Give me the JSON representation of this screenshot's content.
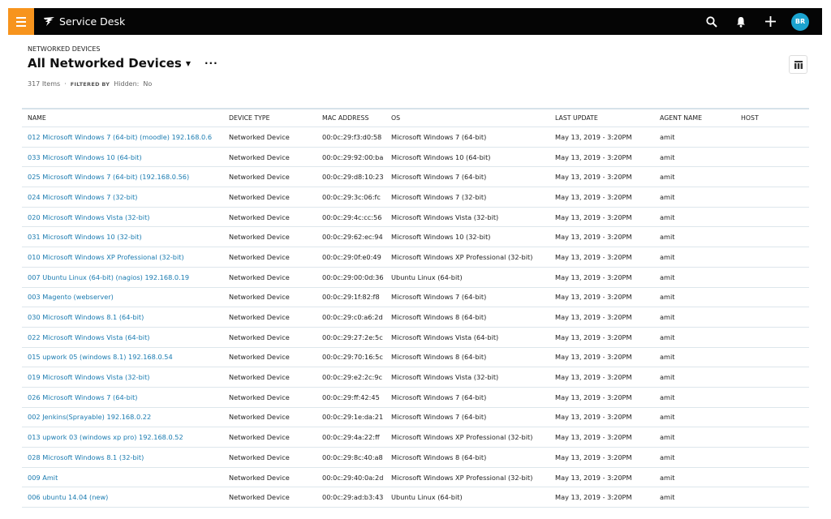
{
  "app": {
    "title": "Service Desk",
    "avatar_initials": "BR",
    "brand_color": "#f7941d",
    "avatar_color": "#1ba3cf",
    "link_color": "#1a7bb0"
  },
  "page": {
    "breadcrumb": "NETWORKED DEVICES",
    "title": "All Networked Devices",
    "item_count": "317 Items",
    "separator": "·",
    "filtered_by_label": "FILTERED BY",
    "filter_key": "Hidden:",
    "filter_value": "No"
  },
  "icons": {
    "menu": "hamburger-icon",
    "search": "search-icon",
    "bell": "bell-icon",
    "add": "plus-icon",
    "columns": "columns-icon"
  },
  "table": {
    "columns": [
      "NAME",
      "DEVICE TYPE",
      "MAC ADDRESS",
      "OS",
      "LAST UPDATE",
      "AGENT NAME",
      "HOST"
    ],
    "rows": [
      [
        "012 Microsoft Windows 7 (64-bit) (moodle) 192.168.0.6",
        "Networked Device",
        "00:0c:29:f3:d0:58",
        "Microsoft Windows 7 (64-bit)",
        "May 13, 2019 - 3:20PM",
        "amit",
        ""
      ],
      [
        "033 Microsoft Windows 10 (64-bit)",
        "Networked Device",
        "00:0c:29:92:00:ba",
        "Microsoft Windows 10 (64-bit)",
        "May 13, 2019 - 3:20PM",
        "amit",
        ""
      ],
      [
        "025 Microsoft Windows 7 (64-bit) (192.168.0.56)",
        "Networked Device",
        "00:0c:29:d8:10:23",
        "Microsoft Windows 7 (64-bit)",
        "May 13, 2019 - 3:20PM",
        "amit",
        ""
      ],
      [
        "024 Microsoft Windows 7 (32-bit)",
        "Networked Device",
        "00:0c:29:3c:06:fc",
        "Microsoft Windows 7 (32-bit)",
        "May 13, 2019 - 3:20PM",
        "amit",
        ""
      ],
      [
        "020 Microsoft Windows Vista (32-bit)",
        "Networked Device",
        "00:0c:29:4c:cc:56",
        "Microsoft Windows Vista (32-bit)",
        "May 13, 2019 - 3:20PM",
        "amit",
        ""
      ],
      [
        "031 Microsoft Windows 10 (32-bit)",
        "Networked Device",
        "00:0c:29:62:ec:94",
        "Microsoft Windows 10 (32-bit)",
        "May 13, 2019 - 3:20PM",
        "amit",
        ""
      ],
      [
        "010 Microsoft Windows XP Professional (32-bit)",
        "Networked Device",
        "00:0c:29:0f:e0:49",
        "Microsoft Windows XP Professional (32-bit)",
        "May 13, 2019 - 3:20PM",
        "amit",
        ""
      ],
      [
        "007 Ubuntu Linux (64-bit) (nagios) 192.168.0.19",
        "Networked Device",
        "00:0c:29:00:0d:36",
        "Ubuntu Linux (64-bit)",
        "May 13, 2019 - 3:20PM",
        "amit",
        ""
      ],
      [
        "003 Magento (webserver)",
        "Networked Device",
        "00:0c:29:1f:82:f8",
        "Microsoft Windows 7 (64-bit)",
        "May 13, 2019 - 3:20PM",
        "amit",
        ""
      ],
      [
        "030 Microsoft Windows 8.1 (64-bit)",
        "Networked Device",
        "00:0c:29:c0:a6:2d",
        "Microsoft Windows 8 (64-bit)",
        "May 13, 2019 - 3:20PM",
        "amit",
        ""
      ],
      [
        "022 Microsoft Windows Vista (64-bit)",
        "Networked Device",
        "00:0c:29:27:2e:5c",
        "Microsoft Windows Vista (64-bit)",
        "May 13, 2019 - 3:20PM",
        "amit",
        ""
      ],
      [
        "015 upwork 05 (windows 8.1) 192.168.0.54",
        "Networked Device",
        "00:0c:29:70:16:5c",
        "Microsoft Windows 8 (64-bit)",
        "May 13, 2019 - 3:20PM",
        "amit",
        ""
      ],
      [
        "019 Microsoft Windows Vista (32-bit)",
        "Networked Device",
        "00:0c:29:e2:2c:9c",
        "Microsoft Windows Vista (32-bit)",
        "May 13, 2019 - 3:20PM",
        "amit",
        ""
      ],
      [
        "026 Microsoft Windows 7 (64-bit)",
        "Networked Device",
        "00:0c:29:ff:42:45",
        "Microsoft Windows 7 (64-bit)",
        "May 13, 2019 - 3:20PM",
        "amit",
        ""
      ],
      [
        "002 Jenkins(Sprayable) 192.168.0.22",
        "Networked Device",
        "00:0c:29:1e:da:21",
        "Microsoft Windows 7 (64-bit)",
        "May 13, 2019 - 3:20PM",
        "amit",
        ""
      ],
      [
        "013 upwork 03 (windows xp pro) 192.168.0.52",
        "Networked Device",
        "00:0c:29:4a:22:ff",
        "Microsoft Windows XP Professional (32-bit)",
        "May 13, 2019 - 3:20PM",
        "amit",
        ""
      ],
      [
        "028 Microsoft Windows 8.1 (32-bit)",
        "Networked Device",
        "00:0c:29:8c:40:a8",
        "Microsoft Windows 8 (64-bit)",
        "May 13, 2019 - 3:20PM",
        "amit",
        ""
      ],
      [
        "009 Amit",
        "Networked Device",
        "00:0c:29:40:0a:2d",
        "Microsoft Windows XP Professional (32-bit)",
        "May 13, 2019 - 3:20PM",
        "amit",
        ""
      ],
      [
        "006 ubuntu 14.04 (new)",
        "Networked Device",
        "00:0c:29:ad:b3:43",
        "Ubuntu Linux (64-bit)",
        "May 13, 2019 - 3:20PM",
        "amit",
        ""
      ]
    ]
  }
}
